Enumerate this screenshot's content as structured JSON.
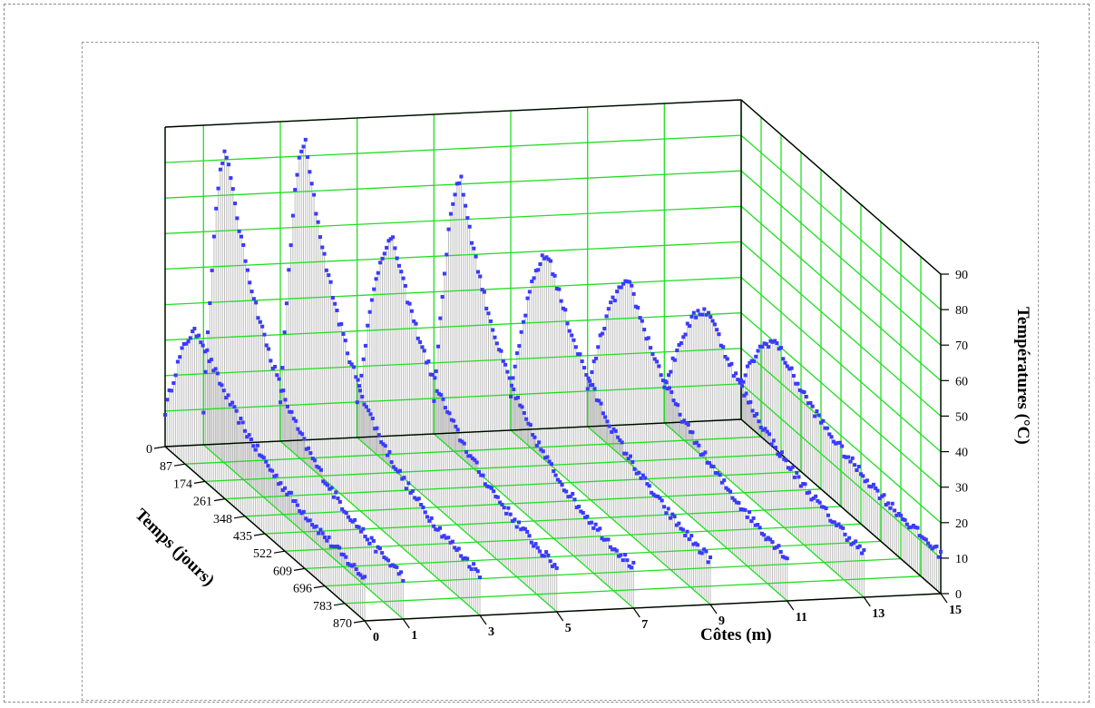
{
  "chart_data": {
    "type": "scatter",
    "xlabel": "Côtes (m)",
    "ylabel": "Temps (jours)",
    "zlabel": "Températures (°C)",
    "x_ticks": [
      "0",
      "1",
      "3",
      "5",
      "7",
      "9",
      "11",
      "13",
      "15"
    ],
    "y_ticks": [
      "0",
      "87",
      "174",
      "261",
      "348",
      "435",
      "522",
      "609",
      "696",
      "783",
      "870"
    ],
    "z_ticks": [
      "0",
      "10",
      "20",
      "30",
      "40",
      "50",
      "60",
      "70",
      "80",
      "90"
    ],
    "x_range": [
      0,
      15
    ],
    "y_range": [
      0,
      870
    ],
    "z_range": [
      0,
      90
    ],
    "grid": true,
    "colors": {
      "grid": "#22dd22",
      "points": "#3a3aff",
      "stems": "#bdbdbd",
      "frame": "#000000"
    },
    "series": [
      {
        "x": 0,
        "peak": 40,
        "t_peak": 150,
        "decay": 270
      },
      {
        "x": 1,
        "peak": 88,
        "t_peak": 100,
        "decay": 210
      },
      {
        "x": 3,
        "peak": 90,
        "t_peak": 110,
        "decay": 200
      },
      {
        "x": 5,
        "peak": 64,
        "t_peak": 160,
        "decay": 230
      },
      {
        "x": 7,
        "peak": 78,
        "t_peak": 120,
        "decay": 200
      },
      {
        "x": 9,
        "peak": 58,
        "t_peak": 170,
        "decay": 240
      },
      {
        "x": 11,
        "peak": 50,
        "t_peak": 190,
        "decay": 240
      },
      {
        "x": 13,
        "peak": 42,
        "t_peak": 200,
        "decay": 260
      },
      {
        "x": 15,
        "peak": 30,
        "t_peak": 160,
        "decay": 240
      }
    ]
  }
}
